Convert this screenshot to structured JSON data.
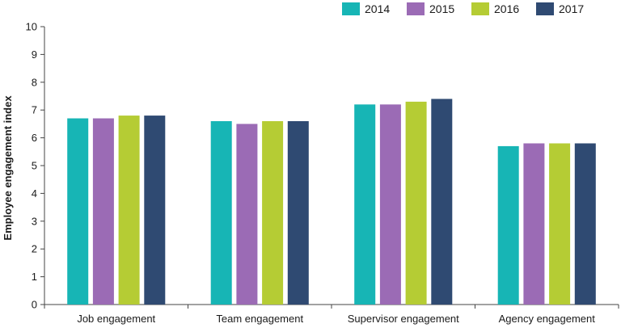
{
  "chart_data": {
    "type": "bar",
    "title": "",
    "xlabel": "",
    "ylabel": "Employee engagement index",
    "ylim": [
      0,
      10
    ],
    "yticks": [
      0,
      1,
      2,
      3,
      4,
      5,
      6,
      7,
      8,
      9,
      10
    ],
    "grid": false,
    "legend_position": "top-right",
    "categories": [
      "Job engagement",
      "Team engagement",
      "Supervisor engagement",
      "Agency engagement"
    ],
    "series": [
      {
        "name": "2014",
        "color": "#17b5b5",
        "values": [
          6.7,
          6.6,
          7.2,
          5.7
        ]
      },
      {
        "name": "2015",
        "color": "#9b6bb5",
        "values": [
          6.7,
          6.5,
          7.2,
          5.8
        ]
      },
      {
        "name": "2016",
        "color": "#b5cc34",
        "values": [
          6.8,
          6.6,
          7.3,
          5.8
        ]
      },
      {
        "name": "2017",
        "color": "#2f4a72",
        "values": [
          6.8,
          6.6,
          7.4,
          5.8
        ]
      }
    ]
  }
}
